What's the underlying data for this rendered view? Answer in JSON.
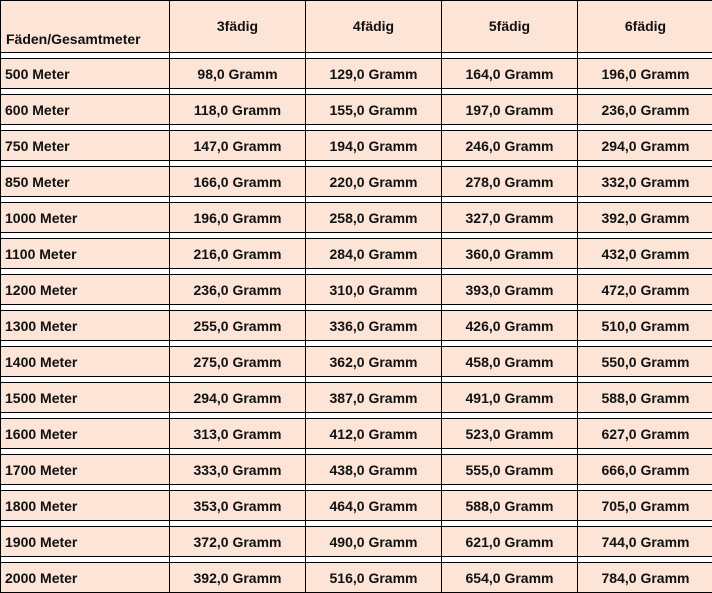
{
  "table": {
    "headers": [
      "Fäden/Gesamtmeter",
      "3fädig",
      "4fädig",
      "5fädig",
      "6fädig"
    ],
    "rows": [
      [
        "500 Meter",
        "98,0 Gramm",
        "129,0 Gramm",
        "164,0 Gramm",
        "196,0 Gramm"
      ],
      [
        "600 Meter",
        "118,0 Gramm",
        "155,0 Gramm",
        "197,0 Gramm",
        "236,0 Gramm"
      ],
      [
        "750 Meter",
        "147,0 Gramm",
        "194,0 Gramm",
        "246,0 Gramm",
        "294,0 Gramm"
      ],
      [
        "850 Meter",
        "166,0 Gramm",
        "220,0 Gramm",
        "278,0 Gramm",
        "332,0 Gramm"
      ],
      [
        "1000 Meter",
        "196,0 Gramm",
        "258,0 Gramm",
        "327,0 Gramm",
        "392,0 Gramm"
      ],
      [
        "1100 Meter",
        "216,0 Gramm",
        "284,0 Gramm",
        "360,0 Gramm",
        "432,0 Gramm"
      ],
      [
        "1200 Meter",
        "236,0 Gramm",
        "310,0 Gramm",
        "393,0 Gramm",
        "472,0 Gramm"
      ],
      [
        "1300 Meter",
        "255,0 Gramm",
        "336,0 Gramm",
        "426,0 Gramm",
        "510,0 Gramm"
      ],
      [
        "1400 Meter",
        "275,0 Gramm",
        "362,0 Gramm",
        "458,0 Gramm",
        "550,0 Gramm"
      ],
      [
        "1500 Meter",
        "294,0 Gramm",
        "387,0 Gramm",
        "491,0 Gramm",
        "588,0 Gramm"
      ],
      [
        "1600 Meter",
        "313,0 Gramm",
        "412,0 Gramm",
        "523,0 Gramm",
        "627,0 Gramm"
      ],
      [
        "1700 Meter",
        "333,0 Gramm",
        "438,0 Gramm",
        "555,0 Gramm",
        "666,0 Gramm"
      ],
      [
        "1800 Meter",
        "353,0 Gramm",
        "464,0 Gramm",
        "588,0 Gramm",
        "705,0 Gramm"
      ],
      [
        "1900 Meter",
        "372,0 Gramm",
        "490,0 Gramm",
        "621,0 Gramm",
        "744,0 Gramm"
      ],
      [
        "2000 Meter",
        "392,0 Gramm",
        "516,0 Gramm",
        "654,0 Gramm",
        "784,0 Gramm"
      ]
    ],
    "fill_color": "#fce4d6",
    "border_color": "#000000"
  }
}
